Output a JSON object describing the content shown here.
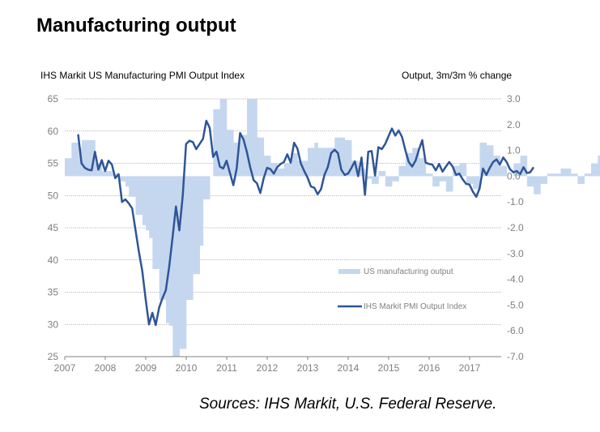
{
  "title": "Manufacturing output",
  "source": "Sources: IHS Markit, U.S. Federal Reserve.",
  "chart_data": {
    "type": "bar+line",
    "title": "Manufacturing output",
    "left_axis_label": "IHS Markit US Manufacturing PMI Output Index",
    "right_axis_label": "Output, 3m/3m % change",
    "left_ylim": [
      25,
      65
    ],
    "left_ticks": [
      "65",
      "60",
      "55",
      "50",
      "45",
      "40",
      "35",
      "30",
      "25"
    ],
    "right_ylim": [
      -7.0,
      3.0
    ],
    "right_ticks": [
      "3.0",
      "2.0",
      "1.0",
      "0.0",
      "-1.0",
      "-2.0",
      "-3.0",
      "-4.0",
      "-5.0",
      "-6.0",
      "-7.0"
    ],
    "x_ticks": [
      "2007",
      "2008",
      "2009",
      "2010",
      "2011",
      "2012",
      "2013",
      "2014",
      "2015",
      "2016",
      "2017"
    ],
    "xlim": [
      2007.0,
      2017.85
    ],
    "grid": true,
    "legend_position": "bottom-right",
    "series": [
      {
        "name": "US manufacturing output",
        "axis": "right",
        "kind": "bar",
        "color": "#c5d7ef",
        "start": 2007.0,
        "step_months": 1,
        "values": [
          0.7,
          0.7,
          1.3,
          1.3,
          1.1,
          1.4,
          1.4,
          1.4,
          1.4,
          0.5,
          0.5,
          0.2,
          0.2,
          0.2,
          0.1,
          0.1,
          -0.2,
          -0.2,
          -0.4,
          -0.8,
          -0.8,
          -1.5,
          -1.5,
          -1.9,
          -2.1,
          -2.4,
          -3.6,
          -3.6,
          -4.8,
          -4.8,
          -5.7,
          -5.8,
          -7.0,
          -7.0,
          -6.7,
          -6.7,
          -4.8,
          -4.8,
          -3.8,
          -3.8,
          -2.7,
          -0.9,
          -0.9,
          0.0,
          2.6,
          2.6,
          3.0,
          3.0,
          1.8,
          1.8,
          1.3,
          1.3,
          1.6,
          1.6,
          3.0,
          3.0,
          3.0,
          1.5,
          1.5,
          0.8,
          0.8,
          0.5,
          0.5,
          0.3,
          0.3,
          0.5,
          0.5,
          0.9,
          0.9,
          0.6,
          0.6,
          0.6,
          1.1,
          1.1,
          1.3,
          1.1,
          1.1,
          1.1,
          1.1,
          1.1,
          1.5,
          1.5,
          1.5,
          1.4,
          1.4,
          0.6,
          0.6,
          0.3,
          0.3,
          -0.1,
          -0.1,
          -0.3,
          -0.3,
          0.2,
          0.2,
          -0.4,
          -0.4,
          -0.2,
          -0.2,
          0.4,
          0.4,
          0.9,
          0.9,
          1.1,
          1.1,
          0.7,
          0.7,
          0.1,
          0.1,
          -0.4,
          -0.4,
          -0.2,
          -0.2,
          -0.6,
          -0.6,
          0.4,
          0.4,
          0.5,
          0.5,
          -0.3,
          -0.3,
          -0.5,
          -0.5,
          1.3,
          1.3,
          1.2,
          1.2,
          0.8,
          0.8,
          0.4,
          0.4,
          0.0,
          0.0,
          0.5,
          0.5,
          0.8,
          0.8,
          -0.4,
          -0.4,
          -0.7,
          -0.7,
          -0.3,
          -0.3,
          0.1,
          0.1,
          0.1,
          0.1,
          0.3,
          0.3,
          0.3,
          0.1,
          0.1,
          -0.3,
          -0.3,
          0.1,
          0.1,
          0.5,
          0.5,
          0.8,
          0.8,
          0.7,
          0.7,
          0.6,
          0.6,
          0.5,
          0.5,
          0.7,
          0.7,
          -0.5,
          -0.5
        ]
      },
      {
        "name": "IHS Markit PMI Output Index",
        "axis": "left",
        "kind": "line",
        "color": "#2f5597",
        "start": 2007.33,
        "step_months": 1,
        "values": [
          59.5,
          55.0,
          54.3,
          54.0,
          53.9,
          56.8,
          54.0,
          55.5,
          53.8,
          55.4,
          54.8,
          52.7,
          53.3,
          49.0,
          49.4,
          48.8,
          48.0,
          44.7,
          41.3,
          38.3,
          34.0,
          30.0,
          31.8,
          29.9,
          32.6,
          34.1,
          35.3,
          39.0,
          43.6,
          48.3,
          44.6,
          50.0,
          58.0,
          58.5,
          58.3,
          57.2,
          58.0,
          58.8,
          61.6,
          60.5,
          56.0,
          56.8,
          54.5,
          54.2,
          55.4,
          53.5,
          51.6,
          54.2,
          59.7,
          58.7,
          56.8,
          54.4,
          52.4,
          51.9,
          50.4,
          52.7,
          54.3,
          54.1,
          53.4,
          54.4,
          54.9,
          55.2,
          56.4,
          55.1,
          58.2,
          57.3,
          55.0,
          53.8,
          52.8,
          51.4,
          51.2,
          50.2,
          51.0,
          53.2,
          54.4,
          56.6,
          57.1,
          56.6,
          54.0,
          53.2,
          53.4,
          54.3,
          55.3,
          53.0,
          55.9,
          50.1,
          56.8,
          56.9,
          53.1,
          57.5,
          57.2,
          58.0,
          59.2,
          60.4,
          59.3,
          60.1,
          59.1,
          57.0,
          55.2,
          54.5,
          55.4,
          57.1,
          58.6,
          55.1,
          54.9,
          54.8,
          53.9,
          54.9,
          53.7,
          54.5,
          55.2,
          54.5,
          53.2,
          53.4,
          52.5,
          51.8,
          51.7,
          50.6,
          49.8,
          51.1,
          54.2,
          53.2,
          54.3,
          55.2,
          55.6,
          54.8,
          55.9,
          55.2,
          54.1,
          53.6,
          53.8,
          53.3,
          54.4,
          53.5,
          53.6,
          54.4
        ]
      }
    ]
  },
  "legend": {
    "bar_label": "US manufacturing output",
    "line_label": "IHS Markit PMI Output Index"
  }
}
